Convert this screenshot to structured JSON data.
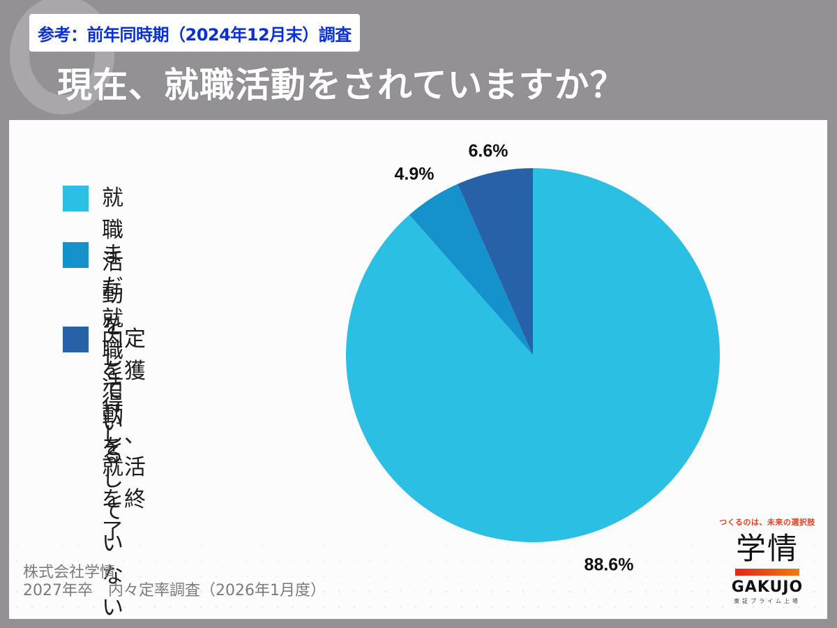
{
  "header": {
    "reference_badge": "参考：前年同時期（2024年12月末）調査",
    "title": "現在、就職活動をされていますか？"
  },
  "colors": {
    "background": "#939194",
    "panel": "#fdfcfd",
    "badge_text": "#0a2fd6",
    "slice_active": "#2bbfe3",
    "slice_not_yet": "#1592cc",
    "slice_finished": "#2761a8"
  },
  "legend": {
    "items": [
      {
        "label": "就職活動をしている",
        "color": "#2bbfe3"
      },
      {
        "label": "まだ就職活動を\nしていない",
        "color": "#1592cc"
      },
      {
        "label": "内定を獲得し、\n就活を終了",
        "color": "#2761a8"
      }
    ]
  },
  "chart_data": {
    "type": "pie",
    "title": "現在、就職活動をされていますか？",
    "subtitle": "参考：前年同時期（2024年12月末）調査",
    "categories": [
      "就職活動をしている",
      "まだ就職活動をしていない",
      "内定を獲得し、就活を終了"
    ],
    "values": [
      88.6,
      4.9,
      6.6
    ],
    "value_labels": [
      "88.6%",
      "4.9%",
      "6.6%"
    ],
    "colors": [
      "#2bbfe3",
      "#1592cc",
      "#2761a8"
    ],
    "start_angle": "12 o'clock",
    "direction": "clockwise",
    "legend_position": "left",
    "unit": "%"
  },
  "source": {
    "company": "株式会社学情",
    "survey": "2027年卒　内々定率調査（2026年1月度）"
  },
  "logo": {
    "tagline": "つくるのは、未来の選択肢",
    "kanji": "学情",
    "english": "GAKUJO",
    "listing": "東証プライム上場"
  }
}
